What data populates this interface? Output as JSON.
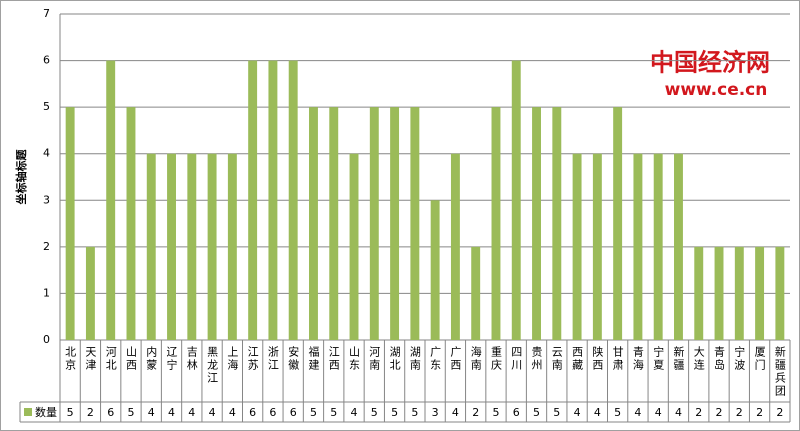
{
  "chart_data": {
    "type": "bar",
    "y_axis_label": "坐标轴标题",
    "categories": [
      "北京",
      "天津",
      "河北",
      "山西",
      "内蒙",
      "辽宁",
      "吉林",
      "黑龙江",
      "上海",
      "江苏",
      "浙江",
      "安徽",
      "福建",
      "江西",
      "山东",
      "河南",
      "湖北",
      "湖南",
      "广东",
      "广西",
      "海南",
      "重庆",
      "四川",
      "贵州",
      "云南",
      "西藏",
      "陕西",
      "甘肃",
      "青海",
      "宁夏",
      "新疆",
      "大连",
      "青岛",
      "宁波",
      "厦门",
      "新疆兵团"
    ],
    "series": [
      {
        "name": "数量",
        "color": "#9bbb59",
        "values": [
          5,
          2,
          6,
          5,
          4,
          4,
          4,
          4,
          4,
          6,
          6,
          6,
          5,
          5,
          4,
          5,
          5,
          5,
          3,
          4,
          2,
          5,
          6,
          5,
          5,
          4,
          4,
          5,
          4,
          4,
          4,
          2,
          2,
          2,
          2,
          2
        ]
      }
    ],
    "ylim": [
      0,
      7
    ],
    "yticks": [
      0,
      1,
      2,
      3,
      4,
      5,
      6,
      7
    ],
    "grid": true,
    "watermark": {
      "logo": "中国经济网",
      "url": "www.ce.cn"
    }
  }
}
